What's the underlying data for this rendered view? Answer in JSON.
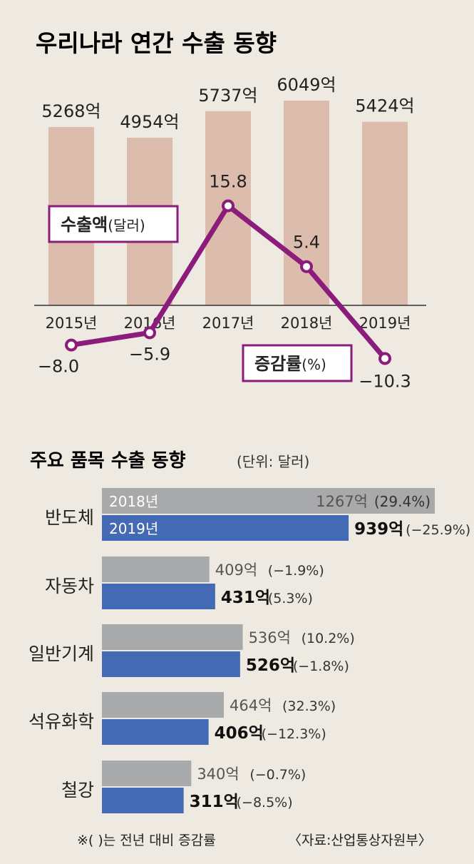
{
  "chart_data": [
    {
      "type": "bar",
      "title": "우리나라 연간 수출 동향",
      "categories": [
        "2015년",
        "2016년",
        "2017년",
        "2018년",
        "2019년"
      ],
      "series": [
        {
          "name": "수출액(달러)",
          "kind": "bar",
          "values": [
            5268,
            4954,
            5737,
            6049,
            5424
          ],
          "labels": [
            "5268억",
            "4954억",
            "5737억",
            "6049억",
            "5424억"
          ]
        },
        {
          "name": "증감률(%)",
          "kind": "line",
          "values": [
            -8.0,
            -5.9,
            15.8,
            5.4,
            -10.3
          ],
          "labels": [
            "−8.0",
            "−5.9",
            "15.8",
            "5.4",
            "−10.3"
          ]
        }
      ],
      "legend": [
        {
          "bold": "수출액",
          "rest": "(달러)"
        },
        {
          "bold": "증감률",
          "rest": "(%)"
        }
      ],
      "colors": {
        "bar": "#dcbcad",
        "line": "#8b1c7b",
        "legend_border": "#8b1c7b"
      }
    },
    {
      "type": "bar",
      "orientation": "horizontal",
      "title": "주요 품목 수출 동향",
      "subtitle": "(단위: 달러)",
      "categories": [
        "반도체",
        "자동차",
        "일반기계",
        "석유화학",
        "철강"
      ],
      "series": [
        {
          "name": "2018년",
          "values": [
            1267,
            409,
            536,
            464,
            340
          ],
          "value_labels": [
            "1267억",
            "409억",
            "536억",
            "464억",
            "340억"
          ],
          "pct_labels": [
            "(29.4%)",
            "(−1.9%)",
            "(10.2%)",
            "(32.3%)",
            "(−0.7%)"
          ]
        },
        {
          "name": "2019년",
          "values": [
            939,
            431,
            526,
            406,
            311
          ],
          "value_labels": [
            "939억",
            "431억",
            "526억",
            "406억",
            "311억"
          ],
          "pct_labels": [
            "(−25.9%)",
            "(5.3%)",
            "(−1.8%)",
            "(−12.3%)",
            "(−8.5%)"
          ]
        }
      ],
      "colors": {
        "y2018": "#a7a9ab",
        "y2019": "#4469b5"
      },
      "footnote": "※(  )는 전년 대비 증감률",
      "source": "〈자료:산업통상자원부〉"
    }
  ]
}
